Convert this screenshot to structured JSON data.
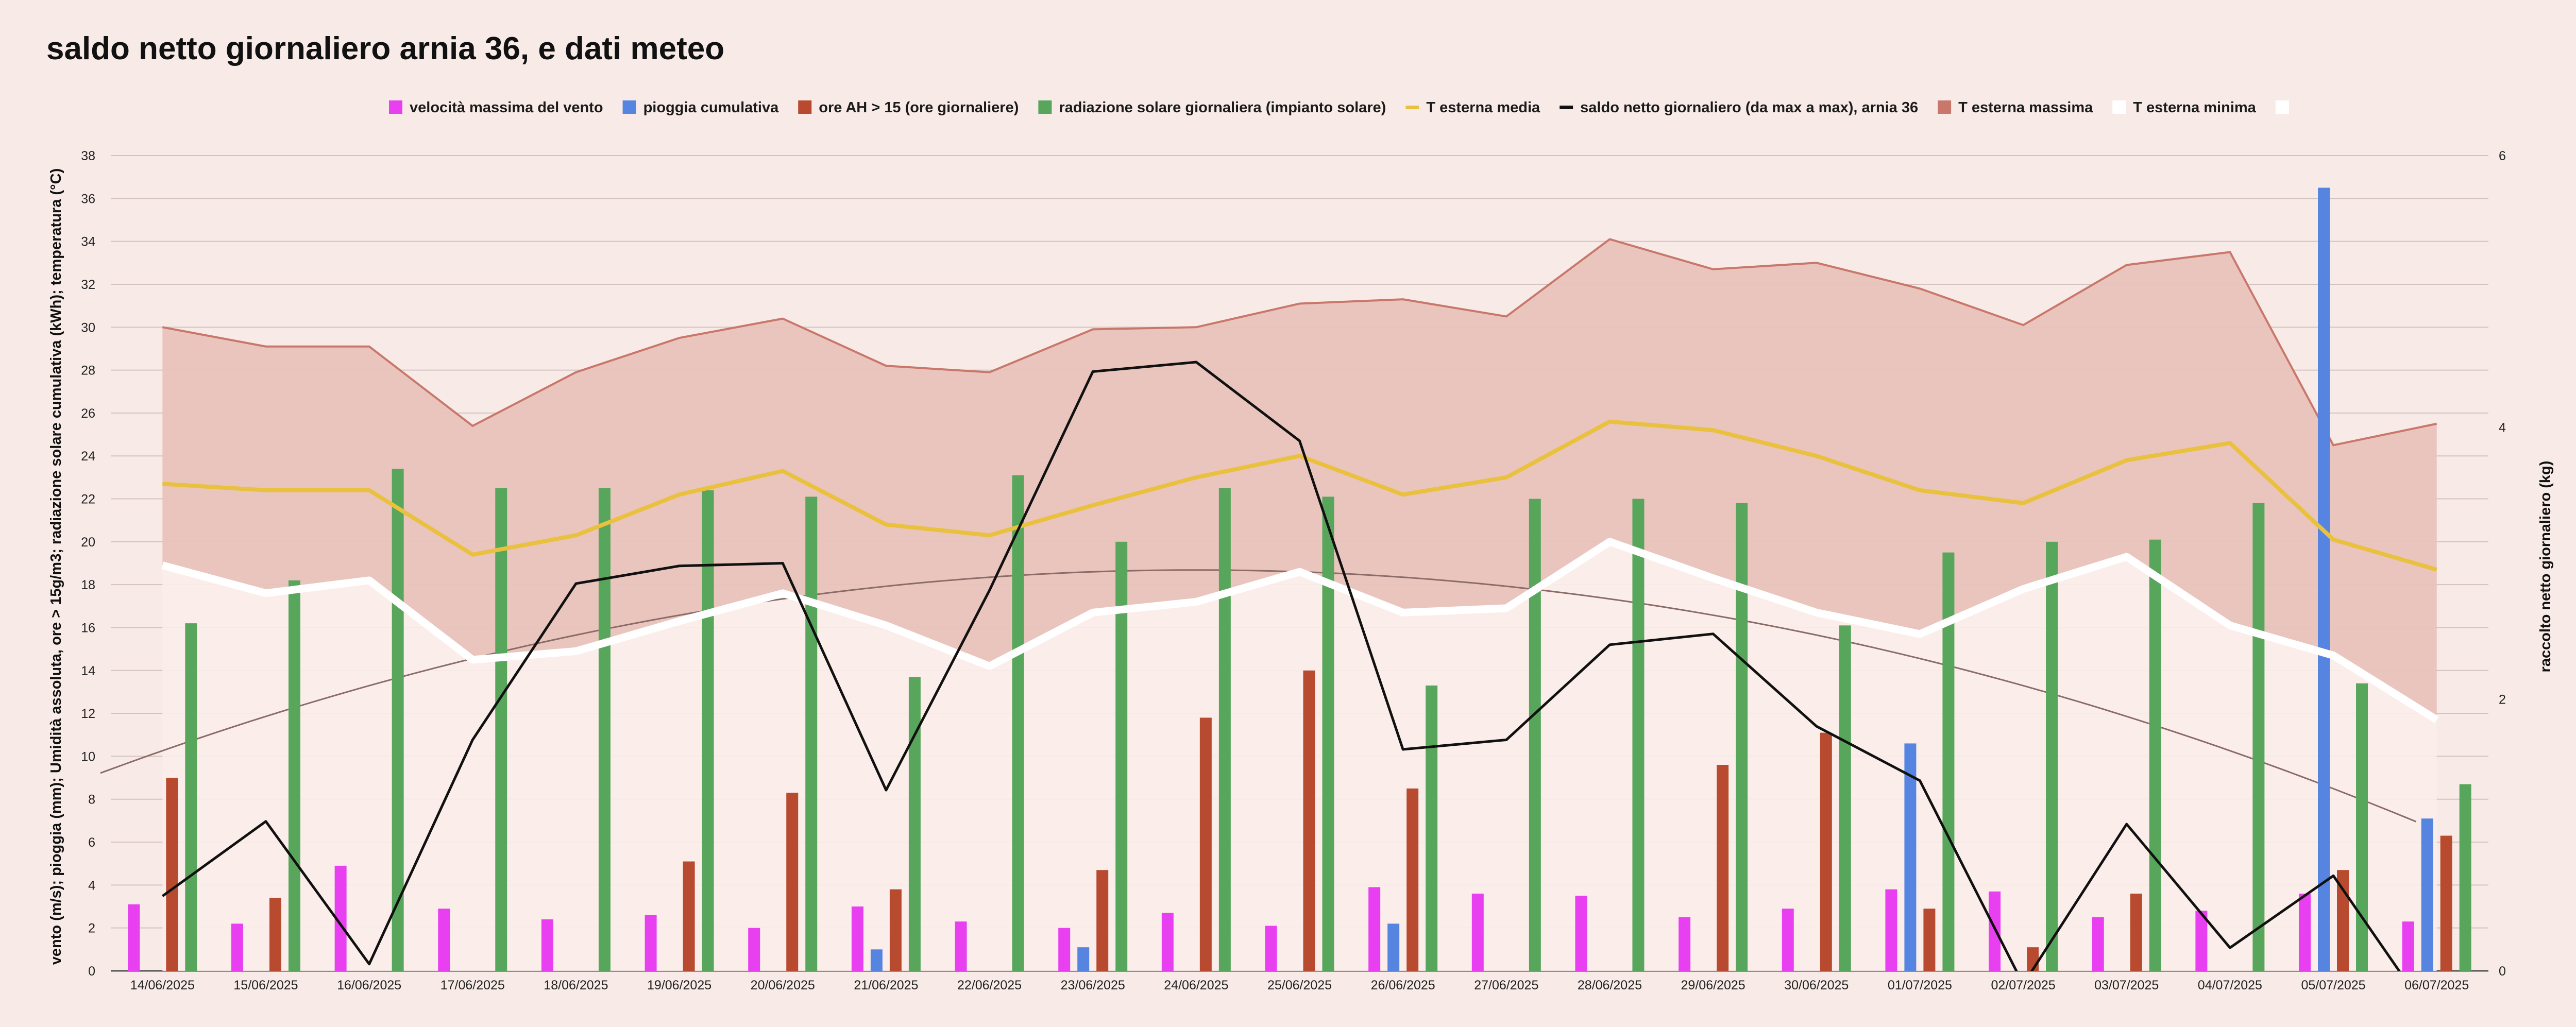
{
  "chart_data": {
    "type": "bar",
    "title": "saldo netto giornaliero arnia  36, e dati meteo",
    "ylabel_left": "vento (m/s); pioggia (mm); Umidità assoluta, ore > 15g/m3; radiazione solare cumulativa (kWh); temperatura (°C)",
    "ylabel_right": "raccolto netto giornaliero (kg)",
    "ylim_left": [
      0,
      38
    ],
    "ylim_right": [
      0,
      6
    ],
    "yticks_left": [
      "0",
      "2",
      "4",
      "6",
      "8",
      "10",
      "12",
      "14",
      "16",
      "18",
      "20",
      "22",
      "24",
      "26",
      "28",
      "30",
      "32",
      "34",
      "36",
      "38"
    ],
    "yticks_right": [
      "0",
      "2",
      "4",
      "6"
    ],
    "grid": true,
    "legend_position": "top",
    "categories": [
      "14/06/2025",
      "15/06/2025",
      "16/06/2025",
      "17/06/2025",
      "18/06/2025",
      "19/06/2025",
      "20/06/2025",
      "21/06/2025",
      "22/06/2025",
      "23/06/2025",
      "24/06/2025",
      "25/06/2025",
      "26/06/2025",
      "27/06/2025",
      "28/06/2025",
      "29/06/2025",
      "30/06/2025",
      "01/07/2025",
      "02/07/2025",
      "03/07/2025",
      "04/07/2025",
      "05/07/2025",
      "06/07/2025"
    ],
    "series": [
      {
        "name": "velocità massima del vento",
        "kind": "bar",
        "axis": "left",
        "color": "#e83ff0",
        "values": [
          3.1,
          2.2,
          4.9,
          2.9,
          2.4,
          2.6,
          2.0,
          3.0,
          2.3,
          2.0,
          2.7,
          2.1,
          3.9,
          3.6,
          3.5,
          2.5,
          2.9,
          3.8,
          3.7,
          2.5,
          2.8,
          3.6,
          2.3
        ]
      },
      {
        "name": "pioggia cumulativa",
        "kind": "bar",
        "axis": "left",
        "color": "#5585e0",
        "values": [
          0,
          0,
          0,
          0,
          0,
          0,
          0,
          1.0,
          0,
          1.1,
          0,
          0,
          2.2,
          0,
          0,
          0,
          0,
          10.6,
          0,
          0,
          0,
          36.5,
          7.1
        ]
      },
      {
        "name": "ore AH > 15 (ore giornaliere)",
        "kind": "bar",
        "axis": "left",
        "color": "#b84a2f",
        "values": [
          9.0,
          3.4,
          0,
          0,
          0,
          5.1,
          8.3,
          3.8,
          0,
          4.7,
          11.8,
          14.0,
          8.5,
          0,
          0,
          9.6,
          11.1,
          2.9,
          1.1,
          3.6,
          0,
          4.7,
          6.3
        ]
      },
      {
        "name": "radiazione solare giornaliera (impianto solare)",
        "kind": "bar",
        "axis": "left",
        "color": "#58a65c",
        "values": [
          16.2,
          18.2,
          23.4,
          22.5,
          22.5,
          22.4,
          22.1,
          13.7,
          23.1,
          20.0,
          22.5,
          22.1,
          13.3,
          22.0,
          22.0,
          21.8,
          16.1,
          19.5,
          20.0,
          20.1,
          21.8,
          13.4,
          8.7
        ]
      },
      {
        "name": "T esterna media",
        "kind": "line",
        "axis": "left",
        "color": "#e9c13e",
        "values": [
          22.7,
          22.4,
          22.4,
          19.4,
          20.3,
          22.2,
          23.3,
          20.8,
          20.3,
          21.7,
          23.0,
          24.0,
          22.2,
          23.0,
          25.6,
          25.2,
          24.0,
          22.4,
          21.8,
          23.8,
          24.6,
          20.1,
          18.7
        ]
      },
      {
        "name": "saldo netto giornaliero (da max a max), arnia  36",
        "kind": "line",
        "axis": "right",
        "color": "#111111",
        "values": [
          0.55,
          1.1,
          0.05,
          1.7,
          2.85,
          2.98,
          3.0,
          1.33,
          2.8,
          4.41,
          4.48,
          3.9,
          1.63,
          1.7,
          2.4,
          2.48,
          1.8,
          1.4,
          -0.1,
          1.08,
          0.17,
          0.7,
          -0.4
        ]
      },
      {
        "name": "T esterna massima",
        "kind": "area",
        "axis": "left",
        "color": "#c9776b",
        "values": [
          30.0,
          29.1,
          29.1,
          25.4,
          27.9,
          29.5,
          30.4,
          28.2,
          27.9,
          29.9,
          30.0,
          31.1,
          31.3,
          30.5,
          34.1,
          32.7,
          33.0,
          31.8,
          30.1,
          32.9,
          33.5,
          24.5,
          25.5
        ]
      },
      {
        "name": "T esterna minima",
        "kind": "area",
        "axis": "left",
        "color": "#ffffff",
        "values": [
          18.9,
          17.6,
          18.2,
          14.5,
          14.9,
          16.3,
          17.6,
          16.1,
          14.2,
          16.7,
          17.2,
          18.6,
          16.7,
          16.9,
          20.0,
          18.3,
          16.7,
          15.7,
          17.8,
          19.3,
          16.1,
          14.7,
          11.7
        ]
      }
    ]
  }
}
